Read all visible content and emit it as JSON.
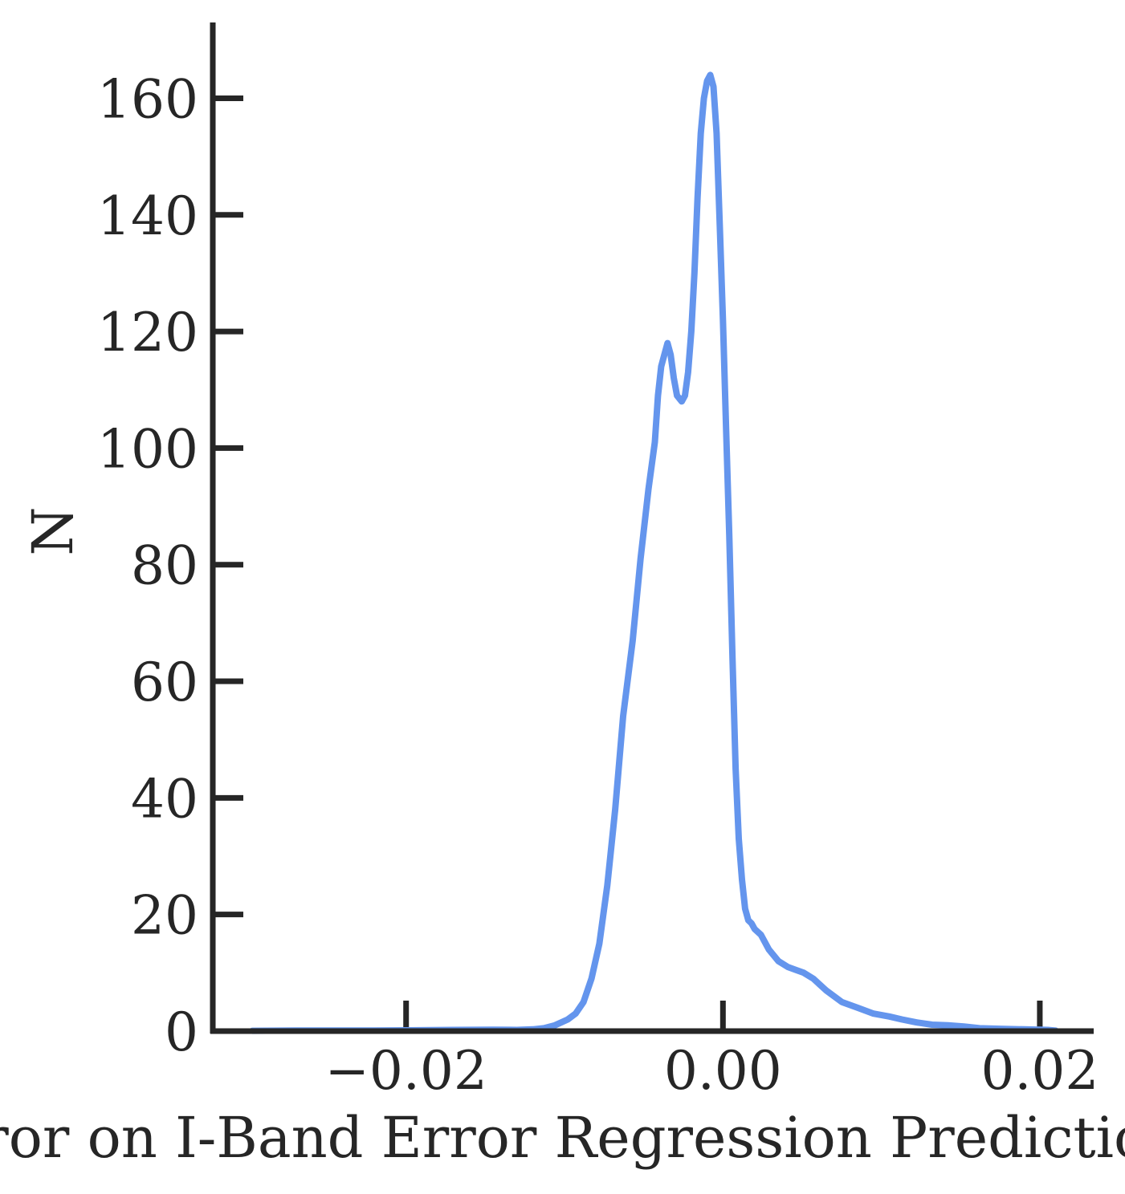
{
  "chart_data": {
    "type": "line",
    "title": "",
    "xlabel": "Error on I-Band Error Regression Prediction",
    "ylabel": "N",
    "xlim": [
      -0.0322,
      0.0234
    ],
    "ylim": [
      0,
      173
    ],
    "grid": false,
    "legend": "none",
    "x_ticks": [
      {
        "value": -0.02,
        "label": "−0.02"
      },
      {
        "value": 0.0,
        "label": "0.00"
      },
      {
        "value": 0.02,
        "label": "0.02"
      }
    ],
    "y_ticks": [
      {
        "value": 0,
        "label": "0"
      },
      {
        "value": 20,
        "label": "20"
      },
      {
        "value": 40,
        "label": "40"
      },
      {
        "value": 60,
        "label": "60"
      },
      {
        "value": 80,
        "label": "80"
      },
      {
        "value": 100,
        "label": "100"
      },
      {
        "value": 120,
        "label": "120"
      },
      {
        "value": 140,
        "label": "140"
      },
      {
        "value": 160,
        "label": "160"
      }
    ],
    "series": [
      {
        "color": "#6495ED",
        "x": [
          -0.0297,
          -0.027,
          -0.022,
          -0.017,
          -0.0145,
          -0.013,
          -0.012,
          -0.0113,
          -0.0106,
          -0.0098,
          -0.0093,
          -0.0088,
          -0.0083,
          -0.0078,
          -0.0073,
          -0.0068,
          -0.0063,
          -0.0057,
          -0.0052,
          -0.0047,
          -0.0043,
          -0.0041,
          -0.0039,
          -0.0037,
          -0.0035,
          -0.0033,
          -0.0031,
          -0.0029,
          -0.0026,
          -0.0024,
          -0.0022,
          -0.002,
          -0.0018,
          -0.0016,
          -0.0014,
          -0.0012,
          -0.001,
          -0.0008,
          -0.0006,
          -0.0004,
          -0.0002,
          0.0,
          0.0002,
          0.0004,
          0.0006,
          0.0008,
          0.001,
          0.0012,
          0.0014,
          0.0016,
          0.0018,
          0.002,
          0.0024,
          0.0029,
          0.0035,
          0.0041,
          0.0046,
          0.0051,
          0.0057,
          0.0065,
          0.0075,
          0.0085,
          0.0095,
          0.0105,
          0.0113,
          0.0122,
          0.0132,
          0.0142,
          0.0152,
          0.0162,
          0.0175,
          0.019,
          0.0205,
          0.021
        ],
        "y": [
          0.05,
          0.1,
          0.1,
          0.2,
          0.25,
          0.2,
          0.3,
          0.5,
          1,
          2,
          3,
          5,
          9,
          15,
          25,
          38,
          54,
          67,
          81,
          93,
          101,
          109,
          114,
          116,
          118,
          116,
          112,
          109,
          108,
          109,
          113,
          120,
          130,
          143,
          154,
          160,
          163,
          164,
          162,
          154,
          138,
          122,
          103,
          85,
          64,
          45,
          33,
          26,
          21,
          19,
          18.5,
          17.5,
          16.5,
          14,
          12,
          11,
          10.5,
          10,
          9,
          7,
          5,
          4,
          3,
          2.5,
          2,
          1.5,
          1.1,
          1,
          0.8,
          0.5,
          0.4,
          0.3,
          0.2,
          0.1
        ]
      }
    ]
  }
}
